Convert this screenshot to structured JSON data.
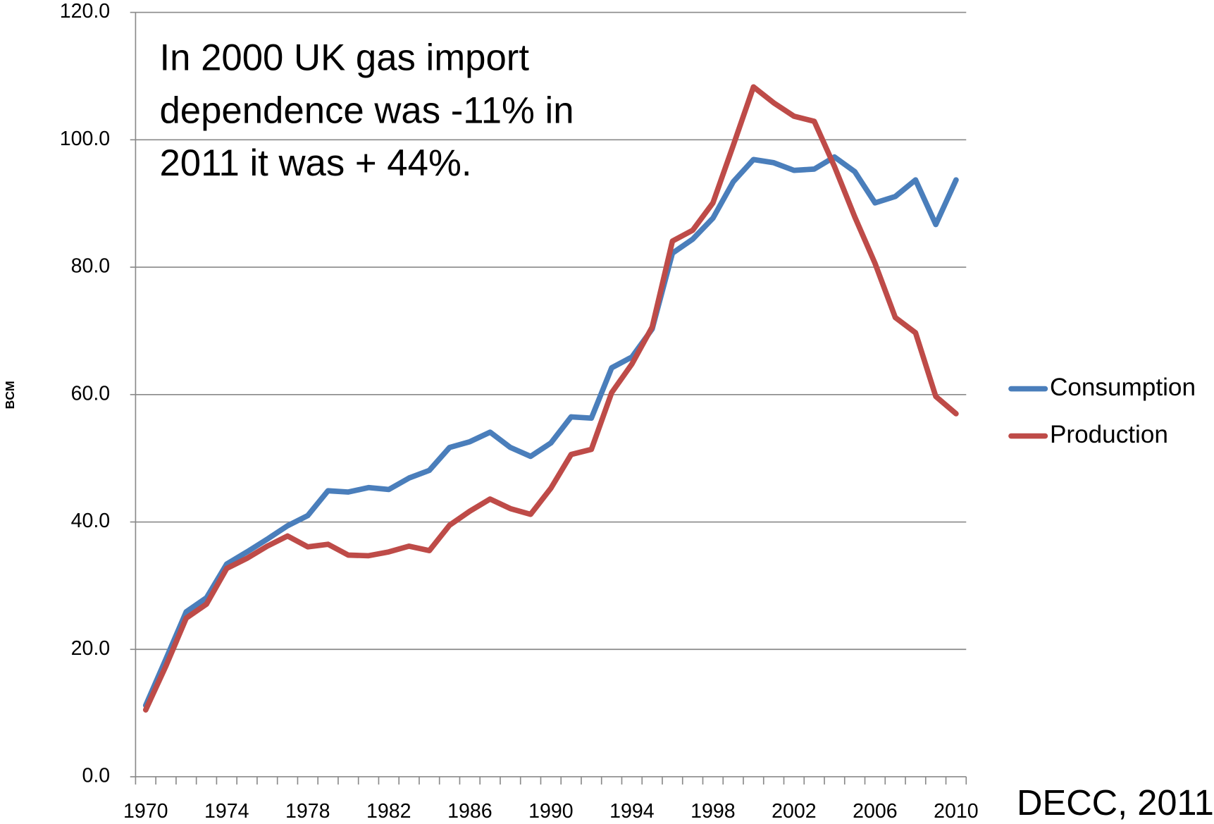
{
  "chart_data": {
    "type": "line",
    "y_label": "BCM",
    "annotation": [
      "In 2000 UK gas import",
      "dependence was -11% in",
      "2011 it was + 44%."
    ],
    "source": "DECC, 2011",
    "categories": [
      "1970",
      null,
      null,
      null,
      "1974",
      null,
      null,
      null,
      "1978",
      null,
      null,
      null,
      "1982",
      null,
      null,
      null,
      "1986",
      null,
      null,
      null,
      "1990",
      null,
      null,
      null,
      "1994",
      null,
      null,
      null,
      "1998",
      null,
      null,
      null,
      "2002",
      null,
      null,
      null,
      "2006",
      null,
      null,
      null,
      "2010"
    ],
    "series": [
      {
        "name": "Consumption",
        "color": "#4a7ebb",
        "values": [
          11.2,
          18.5,
          25.9,
          28.1,
          33.4,
          35.3,
          37.3,
          39.4,
          41.0,
          44.9,
          44.7,
          45.4,
          45.1,
          46.9,
          48.1,
          51.7,
          52.6,
          54.1,
          51.7,
          50.3,
          52.4,
          56.5,
          56.3,
          64.2,
          65.9,
          70.3,
          82.2,
          84.4,
          87.7,
          93.4,
          96.9,
          96.4,
          95.2,
          95.4,
          97.3,
          95.0,
          90.1,
          91.1,
          93.7,
          86.7,
          93.7
        ]
      },
      {
        "name": "Production",
        "color": "#be4b48",
        "values": [
          10.5,
          17.4,
          24.9,
          27.1,
          32.7,
          34.3,
          36.2,
          37.8,
          36.1,
          36.5,
          34.8,
          34.7,
          35.3,
          36.2,
          35.5,
          39.5,
          41.7,
          43.6,
          42.1,
          41.2,
          45.3,
          50.6,
          51.4,
          60.3,
          64.8,
          70.6,
          84.1,
          85.8,
          90.1,
          99.1,
          108.3,
          105.8,
          103.7,
          102.9,
          95.8,
          87.9,
          80.6,
          72.1,
          69.7,
          59.7,
          57.0
        ]
      }
    ],
    "ylim": [
      0,
      120
    ],
    "yticks": [
      {
        "value": 0,
        "label": "0.0"
      },
      {
        "value": 20,
        "label": "20.0"
      },
      {
        "value": 40,
        "label": "40.0"
      },
      {
        "value": 60,
        "label": "60.0"
      },
      {
        "value": 80,
        "label": "80.0"
      },
      {
        "value": 100,
        "label": "100.0"
      },
      {
        "value": 120,
        "label": "120.0"
      }
    ],
    "grid": true,
    "legend": "right"
  }
}
